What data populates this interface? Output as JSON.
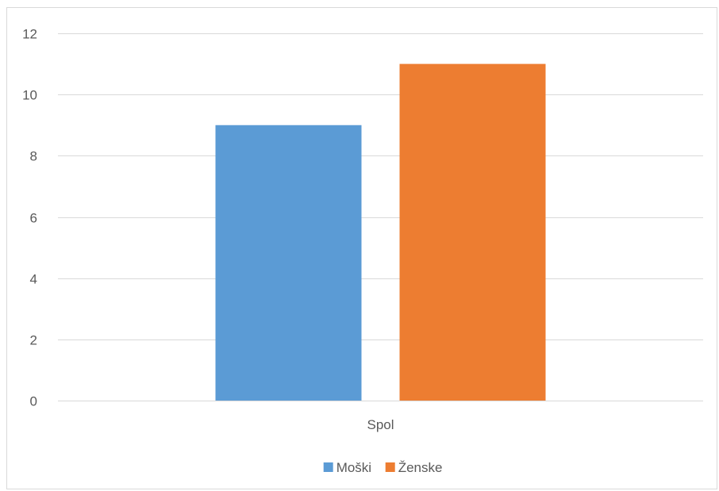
{
  "chart_data": {
    "type": "bar",
    "categories": [
      "Spol"
    ],
    "series": [
      {
        "name": "Moški",
        "values": [
          9
        ],
        "color": "#5b9bd5"
      },
      {
        "name": "Ženske",
        "values": [
          11
        ],
        "color": "#ed7d31"
      }
    ],
    "ylim": [
      0,
      12
    ],
    "yticks": [
      0,
      2,
      4,
      6,
      8,
      10,
      12
    ],
    "grid": true,
    "legend_position": "bottom"
  }
}
